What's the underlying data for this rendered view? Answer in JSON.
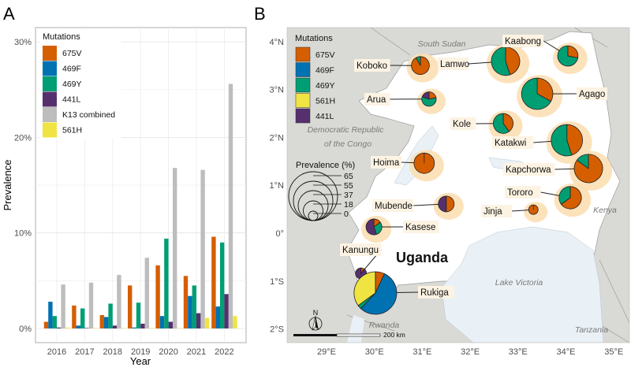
{
  "panels": {
    "a": "A",
    "b": "B"
  },
  "chart_data": [
    {
      "type": "bar",
      "title": "",
      "xlabel": "Year",
      "ylabel": "Prevalence",
      "ylim": [
        0,
        30
      ],
      "yticks": [
        "0%",
        "10%",
        "20%",
        "30%"
      ],
      "ytick_values": [
        0,
        10,
        20,
        30
      ],
      "grid": true,
      "legend_title": "Mutations",
      "legend_placement": "top-left",
      "categories": [
        "2016",
        "2017",
        "2018",
        "2019",
        "2020",
        "2021",
        "2022"
      ],
      "series": [
        {
          "name": "675V",
          "color": "#D55E00",
          "values": [
            0.7,
            2.4,
            1.4,
            4.5,
            6.6,
            5.5,
            9.6
          ]
        },
        {
          "name": "469F",
          "color": "#0072B2",
          "values": [
            2.8,
            0.3,
            1.2,
            0.1,
            1.3,
            3.4,
            2.3
          ]
        },
        {
          "name": "469Y",
          "color": "#009E73",
          "values": [
            1.3,
            2.1,
            2.6,
            2.7,
            9.4,
            4.5,
            9.0
          ]
        },
        {
          "name": "441L",
          "color": "#56306E",
          "values": [
            0.1,
            0.05,
            0.3,
            0.5,
            0.7,
            1.6,
            3.6
          ]
        },
        {
          "name": "K13 combined",
          "color": "#BDBDBD",
          "values": [
            4.6,
            4.8,
            5.6,
            7.4,
            16.8,
            16.6,
            25.6
          ]
        },
        {
          "name": "561H",
          "color": "#F0E442",
          "values": [
            0.1,
            0.05,
            0.05,
            0.05,
            0.05,
            1.1,
            1.3
          ]
        }
      ]
    },
    {
      "type": "map-pie",
      "legend_title": "Mutations",
      "legend": [
        {
          "name": "675V",
          "color": "#D55E00"
        },
        {
          "name": "469F",
          "color": "#0072B2"
        },
        {
          "name": "469Y",
          "color": "#009E73"
        },
        {
          "name": "561H",
          "color": "#F0E442"
        },
        {
          "name": "441L",
          "color": "#56306E"
        }
      ],
      "size_legend_title": "Prevalence (%)",
      "size_legend_values": [
        "65",
        "55",
        "37",
        "18",
        "0"
      ],
      "lat_ticks": [
        "4°N",
        "3°N",
        "2°N",
        "1°N",
        "0°",
        "1°S",
        "2°S"
      ],
      "lon_ticks": [
        "29°E",
        "30°E",
        "31°E",
        "32°E",
        "33°E",
        "34°E",
        "35°E"
      ],
      "place_labels": {
        "south_sudan": "South Sudan",
        "drc_line1": "Democratic Republic",
        "drc_line2": "of the Congo",
        "uganda": "Uganda",
        "lake_victoria": "Lake Victoria",
        "kenya": "Kenya",
        "rwanda": "Rwanda",
        "tanzania": "Tanzania"
      },
      "north_label": "N",
      "scale_label": "200 km",
      "districts": [
        {
          "name": "Koboko",
          "lon": 30.96,
          "lat": 3.5,
          "prevalence": 3,
          "slices": {
            "675V": 0.92,
            "469F": 0,
            "469Y": 0.08,
            "561H": 0,
            "441L": 0
          }
        },
        {
          "name": "Lamwo",
          "lon": 32.74,
          "lat": 3.59,
          "prevalence": 15,
          "slices": {
            "675V": 0.45,
            "469F": 0,
            "469Y": 0.55,
            "561H": 0,
            "441L": 0
          }
        },
        {
          "name": "Kaabong",
          "lon": 34.04,
          "lat": 3.7,
          "prevalence": 5,
          "slices": {
            "675V": 0.28,
            "469F": 0,
            "469Y": 0.72,
            "561H": 0,
            "441L": 0
          }
        },
        {
          "name": "Arua",
          "lon": 31.14,
          "lat": 2.8,
          "prevalence": 1,
          "slices": {
            "675V": 0.22,
            "469F": 0,
            "469Y": 0.58,
            "561H": 0,
            "441L": 0.2
          }
        },
        {
          "name": "Agago",
          "lon": 33.4,
          "lat": 2.91,
          "prevalence": 20,
          "slices": {
            "675V": 0.33,
            "469F": 0,
            "469Y": 0.67,
            "561H": 0,
            "441L": 0
          }
        },
        {
          "name": "Kole",
          "lon": 32.69,
          "lat": 2.29,
          "prevalence": 4.5,
          "slices": {
            "675V": 0.4,
            "469F": 0,
            "469Y": 0.6,
            "561H": 0,
            "441L": 0
          }
        },
        {
          "name": "Katakwi",
          "lon": 34.02,
          "lat": 1.94,
          "prevalence": 20,
          "slices": {
            "675V": 0.45,
            "469F": 0,
            "469Y": 0.55,
            "561H": 0,
            "441L": 0
          }
        },
        {
          "name": "Hoima",
          "lon": 31.04,
          "lat": 1.46,
          "prevalence": 5,
          "slices": {
            "675V": 1.0,
            "469F": 0,
            "469Y": 0,
            "561H": 0,
            "441L": 0
          }
        },
        {
          "name": "Kapchorwa",
          "lon": 34.47,
          "lat": 1.35,
          "prevalence": 15,
          "slices": {
            "675V": 0.85,
            "469F": 0,
            "469Y": 0.15,
            "561H": 0,
            "441L": 0
          }
        },
        {
          "name": "Tororo",
          "lon": 34.09,
          "lat": 0.74,
          "prevalence": 7,
          "slices": {
            "675V": 0.65,
            "469F": 0,
            "469Y": 0.35,
            "561H": 0,
            "441L": 0
          }
        },
        {
          "name": "Mubende",
          "lon": 31.5,
          "lat": 0.61,
          "prevalence": 1.7,
          "slices": {
            "675V": 0.5,
            "469F": 0,
            "469Y": 0,
            "561H": 0,
            "441L": 0.5
          }
        },
        {
          "name": "Jinja",
          "lon": 33.32,
          "lat": 0.49,
          "prevalence": 0,
          "slices": {
            "675V": 1.0,
            "469F": 0,
            "469Y": 0,
            "561H": 0,
            "441L": 0
          }
        },
        {
          "name": "Kasese",
          "lon": 29.99,
          "lat": 0.13,
          "prevalence": 1.7,
          "slices": {
            "675V": 0.15,
            "469F": 0,
            "469Y": 0.3,
            "561H": 0,
            "441L": 0.55
          }
        },
        {
          "name": "Kanungu",
          "lon": 29.72,
          "lat": -0.84,
          "prevalence": 0.1,
          "slices": {
            "675V": 0.1,
            "469F": 0,
            "469Y": 0,
            "561H": 0,
            "441L": 0.9
          }
        },
        {
          "name": "Rukiga",
          "lon": 30.02,
          "lat": -1.25,
          "prevalence": 46,
          "slices": {
            "675V": 0.07,
            "469F": 0.55,
            "469Y": 0.03,
            "561H": 0.35,
            "441L": 0
          }
        }
      ]
    }
  ]
}
